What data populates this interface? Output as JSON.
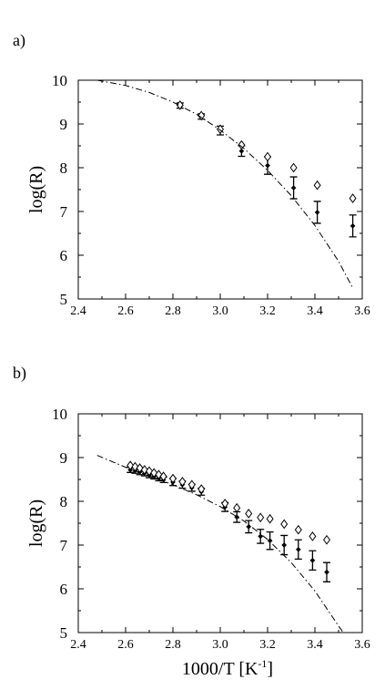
{
  "chart_data": [
    {
      "type": "scatter",
      "panel_label": "a)",
      "title": "",
      "xlabel": "",
      "ylabel": "log(R)",
      "xlim": [
        2.4,
        3.6
      ],
      "ylim": [
        5,
        10
      ],
      "x_ticks": [
        "2.4",
        "2.6",
        "2.8",
        "3.0",
        "3.2",
        "3.4",
        "3.6"
      ],
      "y_ticks": [
        "5",
        "6",
        "7",
        "8",
        "9",
        "10"
      ],
      "grid": false,
      "legend": "none",
      "series": [
        {
          "marker": "filled-diamond",
          "error_bars": true,
          "x": [
            2.83,
            2.92,
            3.0,
            3.09,
            3.2,
            3.31,
            3.41,
            3.56
          ],
          "y": [
            9.42,
            9.17,
            8.85,
            8.38,
            8.05,
            7.54,
            6.98,
            6.67
          ],
          "err": [
            0.06,
            0.06,
            0.1,
            0.12,
            0.2,
            0.25,
            0.25,
            0.25
          ]
        },
        {
          "marker": "open-diamond",
          "error_bars": false,
          "x": [
            2.83,
            2.92,
            3.0,
            3.09,
            3.2,
            3.31,
            3.41,
            3.56
          ],
          "y": [
            9.43,
            9.19,
            8.88,
            8.52,
            8.25,
            8.0,
            7.6,
            7.3
          ]
        },
        {
          "style": "dash-dot",
          "marker": "none",
          "x": [
            2.48,
            2.6,
            2.7,
            2.8,
            2.9,
            3.0,
            3.1,
            3.2,
            3.3,
            3.4,
            3.5,
            3.56
          ],
          "y": [
            10.0,
            9.88,
            9.72,
            9.5,
            9.22,
            8.86,
            8.44,
            7.94,
            7.36,
            6.68,
            5.86,
            5.25
          ]
        }
      ]
    },
    {
      "type": "scatter",
      "panel_label": "b)",
      "title": "",
      "xlabel": "1000/T [K",
      "xlabel_sup": "-1",
      "xlabel_close": "]",
      "ylabel": "log(R)",
      "xlim": [
        2.4,
        3.6
      ],
      "ylim": [
        5,
        10
      ],
      "x_ticks": [
        "2.4",
        "2.6",
        "2.8",
        "3.0",
        "3.2",
        "3.4",
        "3.6"
      ],
      "y_ticks": [
        "5",
        "6",
        "7",
        "8",
        "9",
        "10"
      ],
      "grid": false,
      "legend": "none",
      "series": [
        {
          "marker": "filled-diamond",
          "error_bars": true,
          "x": [
            2.62,
            2.64,
            2.66,
            2.68,
            2.7,
            2.72,
            2.74,
            2.76,
            2.8,
            2.84,
            2.88,
            2.92,
            3.02,
            3.07,
            3.12,
            3.17,
            3.21,
            3.27,
            3.33,
            3.39,
            3.45
          ],
          "y": [
            8.72,
            8.7,
            8.67,
            8.64,
            8.6,
            8.57,
            8.53,
            8.49,
            8.44,
            8.38,
            8.31,
            8.22,
            7.87,
            7.64,
            7.42,
            7.2,
            7.1,
            7.0,
            6.9,
            6.65,
            6.38
          ],
          "err": [
            0.06,
            0.06,
            0.06,
            0.06,
            0.06,
            0.06,
            0.06,
            0.06,
            0.08,
            0.08,
            0.08,
            0.08,
            0.1,
            0.12,
            0.14,
            0.16,
            0.2,
            0.22,
            0.22,
            0.22,
            0.22
          ]
        },
        {
          "marker": "open-diamond",
          "error_bars": false,
          "x": [
            2.62,
            2.64,
            2.66,
            2.68,
            2.7,
            2.72,
            2.74,
            2.76,
            2.8,
            2.84,
            2.88,
            2.92,
            3.02,
            3.07,
            3.12,
            3.17,
            3.21,
            3.27,
            3.33,
            3.39,
            3.45
          ],
          "y": [
            8.82,
            8.79,
            8.76,
            8.72,
            8.69,
            8.65,
            8.61,
            8.57,
            8.52,
            8.45,
            8.38,
            8.28,
            7.95,
            7.85,
            7.72,
            7.63,
            7.6,
            7.48,
            7.35,
            7.2,
            7.12
          ]
        },
        {
          "style": "dash-dot",
          "marker": "none",
          "x": [
            2.48,
            2.6,
            2.7,
            2.8,
            2.9,
            3.0,
            3.1,
            3.2,
            3.3,
            3.4,
            3.5,
            3.52
          ],
          "y": [
            9.05,
            8.78,
            8.58,
            8.38,
            8.15,
            7.88,
            7.55,
            7.13,
            6.6,
            5.95,
            5.15,
            5.0
          ]
        }
      ]
    }
  ]
}
